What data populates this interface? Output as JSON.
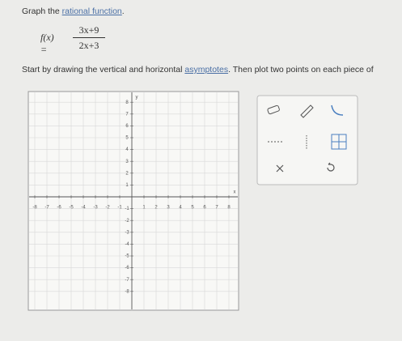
{
  "header": {
    "prefix": "Graph the",
    "link": "rational function",
    "suffix": "."
  },
  "function": {
    "lhs": "f(x) =",
    "numerator": "3x+9",
    "denominator": "2x+3"
  },
  "instruction": {
    "prefix": "Start by drawing the vertical and horizontal",
    "link": "asymptotes",
    "suffix": ". Then plot two points on each piece of"
  },
  "graph": {
    "x_label": "x",
    "y_label": "y",
    "xticks": [
      -8,
      -7,
      -6,
      -5,
      -4,
      -3,
      -2,
      -1,
      1,
      2,
      3,
      4,
      5,
      6,
      7,
      8
    ],
    "yticks": [
      8,
      7,
      6,
      5,
      4,
      3,
      2,
      1,
      -1,
      -2,
      -3,
      -4,
      -5,
      -6,
      -7,
      -8
    ]
  }
}
